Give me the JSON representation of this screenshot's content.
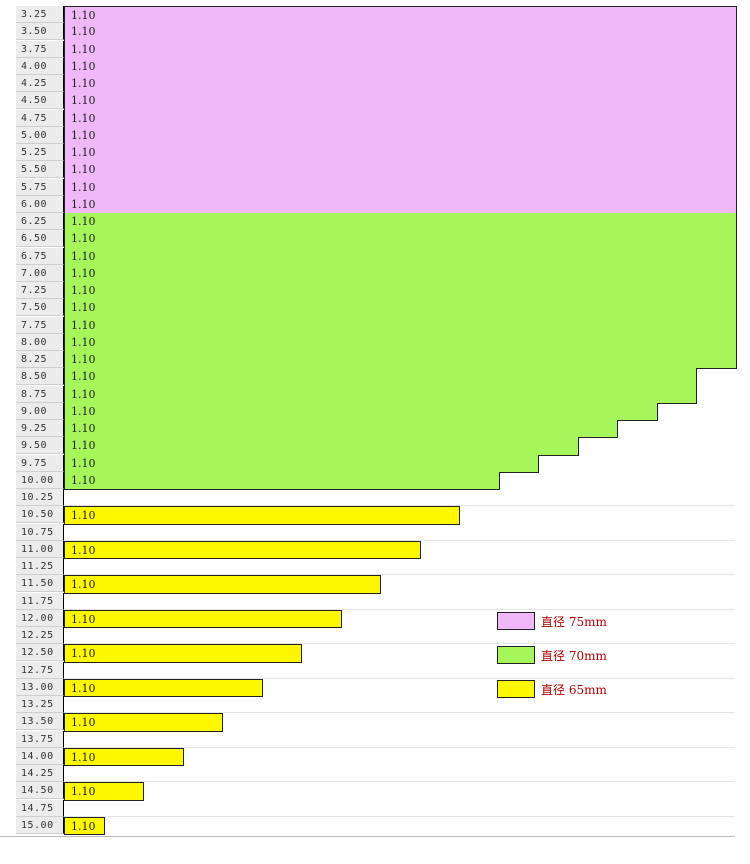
{
  "colors": {
    "purple": "#f0b8f8",
    "green": "#a6f55a",
    "yellow": "#fdf800",
    "label_bg": "#ececec",
    "legend_text": "#b00000"
  },
  "cell_value": "1.10",
  "rows": [
    {
      "label": "3.25",
      "color": "purple",
      "cells": 17
    },
    {
      "label": "3.50",
      "color": "purple",
      "cells": 17
    },
    {
      "label": "3.75",
      "color": "purple",
      "cells": 17
    },
    {
      "label": "4.00",
      "color": "purple",
      "cells": 17
    },
    {
      "label": "4.25",
      "color": "purple",
      "cells": 17
    },
    {
      "label": "4.50",
      "color": "purple",
      "cells": 17
    },
    {
      "label": "4.75",
      "color": "purple",
      "cells": 17
    },
    {
      "label": "5.00",
      "color": "purple",
      "cells": 17
    },
    {
      "label": "5.25",
      "color": "purple",
      "cells": 17
    },
    {
      "label": "5.50",
      "color": "purple",
      "cells": 17
    },
    {
      "label": "5.75",
      "color": "purple",
      "cells": 17
    },
    {
      "label": "6.00",
      "color": "purple",
      "cells": 17
    },
    {
      "label": "6.25",
      "color": "green",
      "cells": 17
    },
    {
      "label": "6.50",
      "color": "green",
      "cells": 17
    },
    {
      "label": "6.75",
      "color": "green",
      "cells": 17
    },
    {
      "label": "7.00",
      "color": "green",
      "cells": 17
    },
    {
      "label": "7.25",
      "color": "green",
      "cells": 17
    },
    {
      "label": "7.50",
      "color": "green",
      "cells": 17
    },
    {
      "label": "7.75",
      "color": "green",
      "cells": 17
    },
    {
      "label": "8.00",
      "color": "green",
      "cells": 17
    },
    {
      "label": "8.25",
      "color": "green",
      "cells": 17
    },
    {
      "label": "8.50",
      "color": "green",
      "cells": 16
    },
    {
      "label": "8.75",
      "color": "green",
      "cells": 16
    },
    {
      "label": "9.00",
      "color": "green",
      "cells": 15
    },
    {
      "label": "9.25",
      "color": "green",
      "cells": 14
    },
    {
      "label": "9.50",
      "color": "green",
      "cells": 13
    },
    {
      "label": "9.75",
      "color": "green",
      "cells": 12
    },
    {
      "label": "10.00",
      "color": "green",
      "cells": 11
    },
    {
      "label": "10.25",
      "color": null,
      "cells": 0
    },
    {
      "label": "10.50",
      "color": "yellow",
      "cells": 10
    },
    {
      "label": "10.75",
      "color": null,
      "cells": 0
    },
    {
      "label": "11.00",
      "color": "yellow",
      "cells": 9
    },
    {
      "label": "11.25",
      "color": null,
      "cells": 0
    },
    {
      "label": "11.50",
      "color": "yellow",
      "cells": 8
    },
    {
      "label": "11.75",
      "color": null,
      "cells": 0
    },
    {
      "label": "12.00",
      "color": "yellow",
      "cells": 7
    },
    {
      "label": "12.25",
      "color": null,
      "cells": 0
    },
    {
      "label": "12.50",
      "color": "yellow",
      "cells": 6
    },
    {
      "label": "12.75",
      "color": null,
      "cells": 0
    },
    {
      "label": "13.00",
      "color": "yellow",
      "cells": 5
    },
    {
      "label": "13.25",
      "color": null,
      "cells": 0
    },
    {
      "label": "13.50",
      "color": "yellow",
      "cells": 4
    },
    {
      "label": "13.75",
      "color": null,
      "cells": 0
    },
    {
      "label": "14.00",
      "color": "yellow",
      "cells": 3
    },
    {
      "label": "14.25",
      "color": null,
      "cells": 0
    },
    {
      "label": "14.50",
      "color": "yellow",
      "cells": 2
    },
    {
      "label": "14.75",
      "color": null,
      "cells": 0
    },
    {
      "label": "15.00",
      "color": "yellow",
      "cells": 1
    }
  ],
  "legend": [
    {
      "label": "直径 75mm",
      "color": "purple"
    },
    {
      "label": "直径 70mm",
      "color": "green"
    },
    {
      "label": "直径 65mm",
      "color": "yellow"
    }
  ]
}
